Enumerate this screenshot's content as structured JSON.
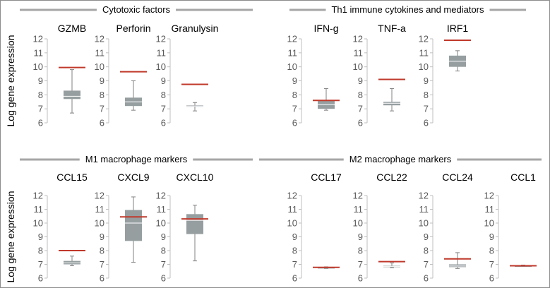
{
  "colors": {
    "box": "#969ea0",
    "whisker": "#808080",
    "axis": "#bfbfbf",
    "reference": "#c0392b",
    "group_line": "#a6a6a6"
  },
  "chart_data": {
    "type": "box",
    "ylabel": "Log gene expression",
    "ylim": [
      6,
      12
    ],
    "yticks": [
      6,
      7,
      8,
      9,
      10,
      11,
      12
    ],
    "groups": [
      {
        "title": "Cytotoxic factors",
        "panels": [
          0,
          1,
          2
        ]
      },
      {
        "title": "Th1 immune cytokines and mediators",
        "panels": [
          3,
          4,
          5
        ]
      },
      {
        "title": "M1 macrophage markers",
        "panels": [
          6,
          7,
          8
        ]
      },
      {
        "title": "M2 macrophage markers",
        "panels": [
          9,
          10,
          11,
          12
        ]
      }
    ],
    "panels": [
      {
        "name": "GZMB",
        "min": 6.7,
        "q1": 7.7,
        "median": 7.9,
        "q3": 8.3,
        "max": 9.8,
        "reference": 9.95
      },
      {
        "name": "Perforin",
        "min": 6.9,
        "q1": 7.2,
        "median": 7.5,
        "q3": 7.8,
        "max": 9.0,
        "reference": 9.65
      },
      {
        "name": "Granulysin",
        "min": 6.85,
        "q1": 7.15,
        "median": 7.2,
        "q3": 7.25,
        "max": 7.45,
        "reference": 8.75
      },
      {
        "name": "IFN-g",
        "min": 6.9,
        "q1": 7.0,
        "median": 7.3,
        "q3": 7.6,
        "max": 8.45,
        "reference": 7.6
      },
      {
        "name": "TNF-a",
        "min": 6.85,
        "q1": 7.25,
        "median": 7.4,
        "q3": 7.5,
        "max": 8.45,
        "reference": 9.1
      },
      {
        "name": "IRF1",
        "min": 9.7,
        "q1": 10.0,
        "median": 10.4,
        "q3": 10.8,
        "max": 11.15,
        "reference": 11.9
      },
      {
        "name": "CCL15",
        "min": 6.9,
        "q1": 7.0,
        "median": 7.1,
        "q3": 7.25,
        "max": 7.6,
        "reference": 8.0
      },
      {
        "name": "CXCL9",
        "min": 7.15,
        "q1": 8.7,
        "median": 10.0,
        "q3": 10.95,
        "max": 11.9,
        "reference": 10.45
      },
      {
        "name": "CXCL10",
        "min": 7.25,
        "q1": 9.2,
        "median": 10.2,
        "q3": 10.65,
        "max": 11.3,
        "reference": 10.3
      },
      {
        "name": "CCL17",
        "min": 6.7,
        "q1": 6.75,
        "median": 6.77,
        "q3": 6.8,
        "max": 6.82,
        "reference": 6.78
      },
      {
        "name": "CCL22",
        "min": 6.75,
        "q1": 6.8,
        "median": 6.85,
        "q3": 6.9,
        "max": 7.1,
        "reference": 7.2
      },
      {
        "name": "CCL24",
        "min": 6.7,
        "q1": 6.8,
        "median": 6.88,
        "q3": 7.0,
        "max": 7.85,
        "reference": 7.4
      },
      {
        "name": "CCL1",
        "min": 6.85,
        "q1": 6.88,
        "median": 6.9,
        "q3": 6.92,
        "max": 6.95,
        "reference": 6.9
      }
    ]
  }
}
